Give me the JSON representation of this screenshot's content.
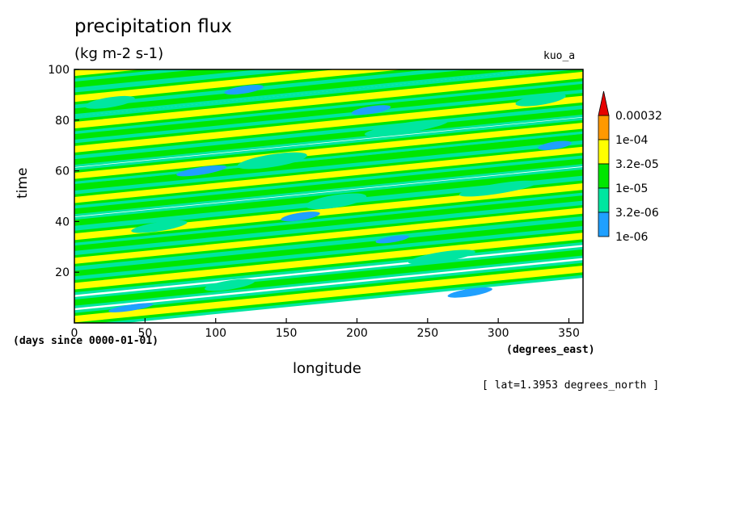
{
  "chart_data": {
    "type": "heatmap",
    "title": "precipitation flux",
    "units": "(kg m-2 s-1)",
    "case_label": "kuo_a",
    "xlabel": "longitude",
    "ylabel": "time",
    "x_units": "(degrees_east)",
    "y_units": "(days since 0000-01-01)",
    "annotation": "[ lat=1.3953 degrees_north ]",
    "xlim": [
      0,
      360
    ],
    "ylim": [
      0,
      100
    ],
    "x_ticks": [
      0,
      50,
      100,
      150,
      200,
      250,
      300,
      350
    ],
    "y_ticks": [
      20,
      40,
      60,
      80,
      100
    ],
    "grid": false,
    "legend_position": "right",
    "colorbar": {
      "levels": [
        "1e-06",
        "3.2e-06",
        "1e-05",
        "3.2e-05",
        "1e-04",
        "0.00032"
      ],
      "colors": [
        "#1fa0ff",
        "#00e6a0",
        "#00e600",
        "#ffff00",
        "#ff9900",
        "#e60000"
      ]
    },
    "bands": [
      {
        "x0": 0,
        "x1": 360,
        "y0": 1.5,
        "slope": 0.055,
        "width": 2.6,
        "level": 3
      },
      {
        "x0": 0,
        "x1": 360,
        "y0": 8.0,
        "slope": 0.055,
        "width": 2.4,
        "level": 2
      },
      {
        "x0": 0,
        "x1": 360,
        "y0": 14.5,
        "slope": 0.055,
        "width": 2.6,
        "level": 3
      },
      {
        "x0": 0,
        "x1": 360,
        "y0": 19.5,
        "slope": 0.055,
        "width": 2.2,
        "level": 2
      },
      {
        "x0": 0,
        "x1": 360,
        "y0": 24.5,
        "slope": 0.055,
        "width": 2.4,
        "level": 3
      },
      {
        "x0": 0,
        "x1": 360,
        "y0": 29.5,
        "slope": 0.055,
        "width": 2.2,
        "level": 2
      },
      {
        "x0": 0,
        "x1": 360,
        "y0": 34.0,
        "slope": 0.055,
        "width": 2.6,
        "level": 3
      },
      {
        "x0": 0,
        "x1": 360,
        "y0": 39.5,
        "slope": 0.055,
        "width": 2.4,
        "level": 2
      },
      {
        "x0": 0,
        "x1": 360,
        "y0": 44.0,
        "slope": 0.055,
        "width": 2.2,
        "level": 2
      },
      {
        "x0": 0,
        "x1": 360,
        "y0": 48.5,
        "slope": 0.055,
        "width": 2.4,
        "level": 3
      },
      {
        "x0": 0,
        "x1": 360,
        "y0": 53.5,
        "slope": 0.055,
        "width": 2.6,
        "level": 2
      },
      {
        "x0": 0,
        "x1": 360,
        "y0": 58.0,
        "slope": 0.055,
        "width": 2.4,
        "level": 3
      },
      {
        "x0": 0,
        "x1": 360,
        "y0": 63.5,
        "slope": 0.055,
        "width": 2.2,
        "level": 2
      },
      {
        "x0": 0,
        "x1": 360,
        "y0": 68.5,
        "slope": 0.055,
        "width": 2.6,
        "level": 3
      },
      {
        "x0": 0,
        "x1": 360,
        "y0": 73.5,
        "slope": 0.055,
        "width": 2.4,
        "level": 2
      },
      {
        "x0": 0,
        "x1": 360,
        "y0": 78.0,
        "slope": 0.055,
        "width": 2.6,
        "level": 3
      },
      {
        "x0": 0,
        "x1": 360,
        "y0": 83.5,
        "slope": 0.055,
        "width": 2.2,
        "level": 2
      },
      {
        "x0": 0,
        "x1": 360,
        "y0": 88.5,
        "slope": 0.055,
        "width": 2.6,
        "level": 3
      },
      {
        "x0": 0,
        "x1": 360,
        "y0": 94.0,
        "slope": 0.055,
        "width": 2.4,
        "level": 2
      },
      {
        "x0": 0,
        "x1": 360,
        "y0": 98.5,
        "slope": 0.055,
        "width": 2.2,
        "level": 3
      },
      {
        "x0": 0,
        "x1": 360,
        "y0": 104.0,
        "slope": 0.055,
        "width": 2.4,
        "level": 2
      }
    ],
    "patches": [
      {
        "x": 25,
        "y": 87,
        "rx": 18,
        "ry": 2.0,
        "level": 1
      },
      {
        "x": 140,
        "y": 64,
        "rx": 25,
        "ry": 2.5,
        "level": 1
      },
      {
        "x": 185,
        "y": 48,
        "rx": 22,
        "ry": 2.5,
        "level": 1
      },
      {
        "x": 235,
        "y": 77,
        "rx": 30,
        "ry": 2.0,
        "level": 1
      },
      {
        "x": 300,
        "y": 53,
        "rx": 28,
        "ry": 2.0,
        "level": 1
      },
      {
        "x": 60,
        "y": 38,
        "rx": 20,
        "ry": 1.8,
        "level": 1
      },
      {
        "x": 110,
        "y": 15,
        "rx": 18,
        "ry": 1.8,
        "level": 1
      },
      {
        "x": 260,
        "y": 26,
        "rx": 24,
        "ry": 2.0,
        "level": 1
      },
      {
        "x": 330,
        "y": 88,
        "rx": 18,
        "ry": 2.0,
        "level": 1
      },
      {
        "x": 90,
        "y": 60,
        "rx": 18,
        "ry": 1.5,
        "level": 0
      },
      {
        "x": 210,
        "y": 84,
        "rx": 14,
        "ry": 1.5,
        "level": 0
      },
      {
        "x": 160,
        "y": 42,
        "rx": 14,
        "ry": 1.5,
        "level": 0
      },
      {
        "x": 340,
        "y": 70,
        "rx": 12,
        "ry": 1.5,
        "level": 0
      },
      {
        "x": 40,
        "y": 6,
        "rx": 16,
        "ry": 1.2,
        "level": 0
      },
      {
        "x": 280,
        "y": 12,
        "rx": 16,
        "ry": 1.5,
        "level": 0
      },
      {
        "x": 120,
        "y": 92,
        "rx": 14,
        "ry": 1.5,
        "level": 0
      },
      {
        "x": 225,
        "y": 33,
        "rx": 12,
        "ry": 1.2,
        "level": 0
      }
    ]
  }
}
